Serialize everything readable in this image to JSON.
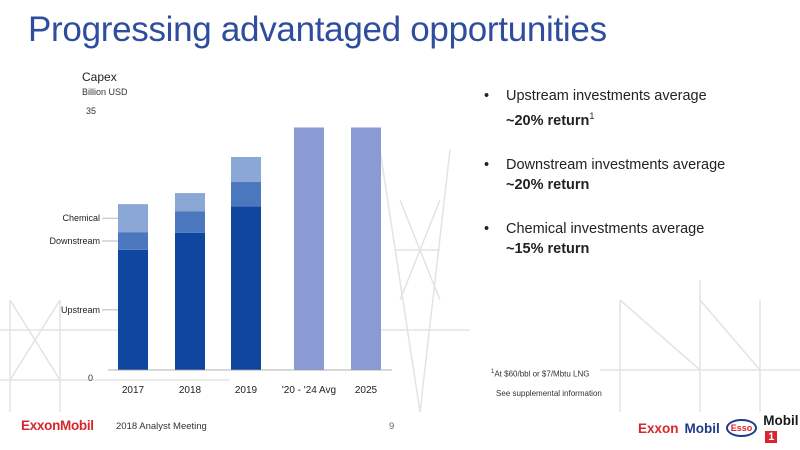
{
  "slide": {
    "title": "Progressing advantaged opportunities",
    "page_number": "9",
    "footer_text": "2018 Analyst Meeting",
    "logo_text": "ExxonMobil"
  },
  "bullets": [
    {
      "text": "Upstream investments average",
      "strong": "~20% return",
      "sup": "1"
    },
    {
      "text": "Downstream investments average",
      "strong": "~20% return",
      "sup": ""
    },
    {
      "text": "Chemical investments average",
      "strong": "~15% return",
      "sup": ""
    }
  ],
  "footnote": {
    "sup": "1",
    "text": "At $60/bbl or $7/Mbtu LNG"
  },
  "supplemental": "See supplemental information",
  "brands": {
    "exxon": "Exxon",
    "mobil": "Mobil",
    "esso": "Esso",
    "mobil1": "Mobil",
    "one": "1"
  },
  "chart_data": {
    "type": "bar",
    "stacked": true,
    "title": "Capex",
    "ylabel": "Billion USD",
    "ylim": [
      0,
      35
    ],
    "yticks": [
      "35",
      "0"
    ],
    "categories": [
      "2017",
      "2018",
      "2019",
      "'20 - '24 Avg",
      "2025"
    ],
    "series": [
      {
        "name": "Upstream",
        "color": "#0f47a0",
        "values": [
          16.3,
          18.6,
          22.2,
          null,
          null
        ]
      },
      {
        "name": "Downstream",
        "color": "#4a77bd",
        "values": [
          2.4,
          2.9,
          3.3,
          null,
          null
        ]
      },
      {
        "name": "Chemical",
        "color": "#8aa7d6",
        "values": [
          3.8,
          2.5,
          3.4,
          null,
          null
        ]
      }
    ],
    "totals_only": [
      null,
      null,
      null,
      32.9,
      32.9
    ],
    "totals_color": "#8a9bd3",
    "legend_labels": [
      "Chemical",
      "Downstream",
      "Upstream"
    ]
  }
}
